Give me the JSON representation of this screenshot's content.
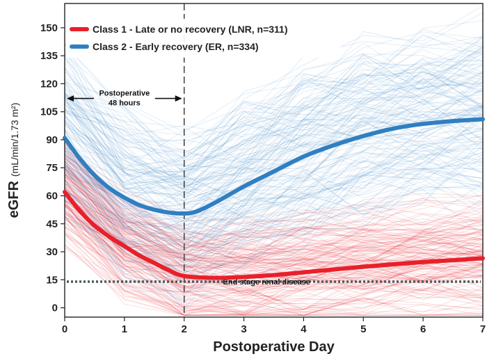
{
  "chart_data": {
    "type": "line",
    "xlabel": "Postoperative Day",
    "ylabel": "eGFR",
    "ylabel_unit": "(mL/min/1.73 m²)",
    "xlim": [
      0,
      7
    ],
    "ylim": [
      -5,
      163
    ],
    "x_ticks": [
      "0",
      "1",
      "2",
      "3",
      "4",
      "5",
      "6",
      "7"
    ],
    "y_ticks": [
      "0",
      "15",
      "30",
      "45",
      "60",
      "75",
      "90",
      "105",
      "120",
      "135",
      "150"
    ],
    "grid": false,
    "legend_position": "top-left",
    "series": [
      {
        "name": "Class 1 - Late or no recovery (LNR, n=311)",
        "color": "#e8202a",
        "x": [
          0,
          0.25,
          0.5,
          0.75,
          1,
          1.25,
          1.5,
          1.75,
          2,
          2.5,
          3,
          3.5,
          4,
          4.5,
          5,
          5.5,
          6,
          6.5,
          7
        ],
        "y": [
          62,
          52,
          44,
          38,
          33,
          28,
          24,
          20,
          17,
          16,
          16.5,
          17.5,
          19,
          20.5,
          22,
          23.3,
          24.5,
          25.5,
          26.5
        ]
      },
      {
        "name": "Class 2 - Early recovery (ER, n=334)",
        "color": "#2f7fc1",
        "x": [
          0,
          0.25,
          0.5,
          0.75,
          1,
          1.25,
          1.5,
          1.75,
          2,
          2.2,
          2.5,
          3,
          3.5,
          4,
          4.5,
          5,
          5.5,
          6,
          6.5,
          7
        ],
        "y": [
          91,
          80,
          71,
          64,
          59,
          55,
          52.5,
          51,
          50.5,
          51.5,
          56,
          65,
          73,
          81,
          87,
          92,
          96,
          98.5,
          100,
          101
        ]
      }
    ],
    "reference_lines": [
      {
        "orientation": "vertical",
        "x": 2,
        "style": "dashed"
      },
      {
        "orientation": "horizontal",
        "y": 14,
        "style": "dotted",
        "label": "End stage renal disease"
      }
    ],
    "annotations": [
      {
        "text_line1": "Postoperative",
        "text_line2": "48 hours",
        "x_from": 0,
        "x_to": 2,
        "y": 111
      }
    ]
  }
}
